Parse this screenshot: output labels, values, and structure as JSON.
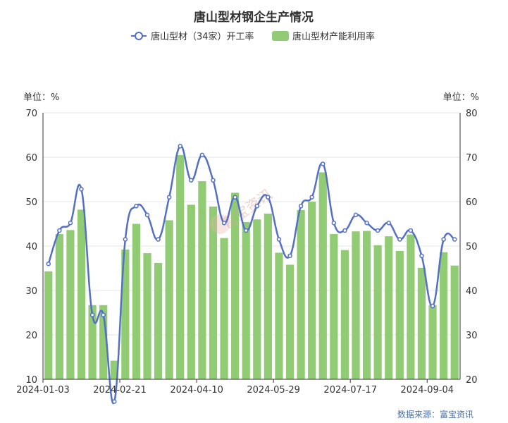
{
  "title": "唐山型材钢企生产情况",
  "source": "数据来源：富宝资讯",
  "watermark": "富宝资讯",
  "chart_data": {
    "type": "bar+line",
    "title": "唐山型材钢企生产情况",
    "left_axis": {
      "unit_label": "单位：%",
      "ylim": [
        10,
        70
      ],
      "ticks": [
        10,
        20,
        30,
        40,
        50,
        60,
        70
      ]
    },
    "right_axis": {
      "unit_label": "单位：%",
      "ylim": [
        20,
        80
      ],
      "ticks": [
        20,
        30,
        40,
        50,
        60,
        70,
        80
      ]
    },
    "x_tick_labels": [
      "2024-01-03",
      "2024-02-21",
      "2024-04-10",
      "2024-05-29",
      "2024-07-17",
      "2024-09-04"
    ],
    "x_tick_indices": [
      0,
      7,
      14,
      21,
      28,
      35
    ],
    "grid": true,
    "legend_position": "top-center",
    "series": [
      {
        "name": "唐山型材产能利用率",
        "type": "bar",
        "axis": "right",
        "color": "#91cc75",
        "values": [
          44.3,
          52.7,
          53.6,
          58.2,
          36.7,
          36.7,
          24.2,
          49.2,
          55.0,
          48.4,
          46.2,
          55.8,
          70.5,
          59.3,
          64.6,
          58.9,
          51.8,
          62.0,
          55.4,
          56.0,
          57.3,
          48.5,
          45.8,
          58.1,
          60.0,
          66.6,
          52.7,
          49.1,
          53.3,
          53.4,
          50.2,
          52.2,
          48.9,
          52.6,
          45.1,
          36.7,
          48.6,
          45.6
        ]
      },
      {
        "name": "唐山型材（34家）开工率",
        "type": "line",
        "axis": "left",
        "color": "#5470c6",
        "values": [
          36.0,
          43.5,
          45.2,
          52.8,
          24.5,
          24.5,
          5.0,
          41.5,
          49.0,
          47.0,
          41.5,
          51.0,
          62.5,
          54.8,
          60.5,
          54.8,
          45.2,
          51.0,
          43.5,
          49.0,
          51.0,
          41.5,
          37.8,
          49.0,
          51.0,
          58.5,
          45.2,
          43.5,
          47.0,
          45.2,
          43.5,
          45.2,
          41.5,
          43.5,
          37.8,
          26.5,
          41.5,
          41.5
        ]
      }
    ]
  }
}
